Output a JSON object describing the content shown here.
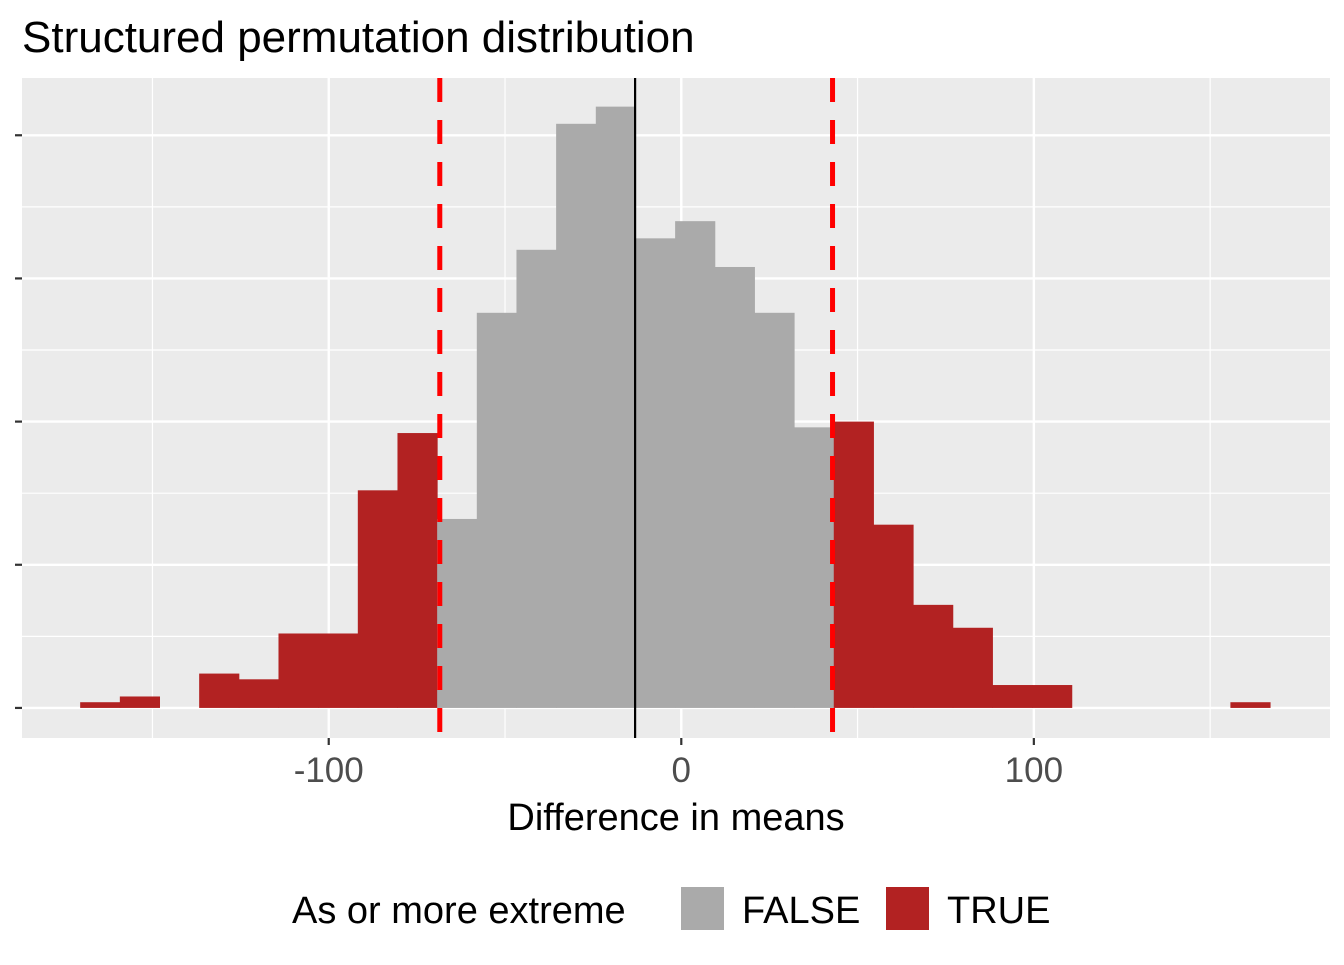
{
  "chart_data": {
    "type": "bar",
    "subtype": "histogram",
    "title": "Structured permutation distribution",
    "xlabel": "Difference in means",
    "ylabel": "",
    "xlim": [
      -187,
      184
    ],
    "ylim": [
      -5.25,
      110
    ],
    "x_ticks": [
      -100,
      0,
      100
    ],
    "x_tick_labels": [
      "-100",
      "0",
      "100"
    ],
    "y_ticks": [
      0,
      25,
      50,
      75,
      100
    ],
    "y_tick_labels_shown": false,
    "grid": true,
    "bin_width": 11.25,
    "bin_start": -170.5,
    "counts": [
      1,
      2,
      0,
      6,
      5,
      13,
      13,
      38,
      48,
      33,
      69,
      80,
      102,
      105,
      82,
      85,
      77,
      69,
      49,
      50,
      32,
      18,
      14,
      4,
      4,
      0,
      0,
      0,
      0,
      1
    ],
    "extreme": [
      true,
      true,
      false,
      true,
      true,
      true,
      true,
      true,
      true,
      false,
      false,
      false,
      false,
      false,
      false,
      false,
      false,
      false,
      false,
      true,
      true,
      true,
      true,
      true,
      true,
      false,
      false,
      false,
      false,
      true
    ],
    "observed_line": -13.1,
    "threshold_lines": [
      -68.5,
      42.9
    ],
    "colors": {
      "FALSE": "#aaaaaa",
      "TRUE": "#b22222",
      "threshold": "#ff0000",
      "observed": "#000000",
      "panel": "#ebebeb"
    },
    "legend": {
      "title": "As or more extreme",
      "entries": [
        "FALSE",
        "TRUE"
      ],
      "placement": "bottom"
    }
  }
}
